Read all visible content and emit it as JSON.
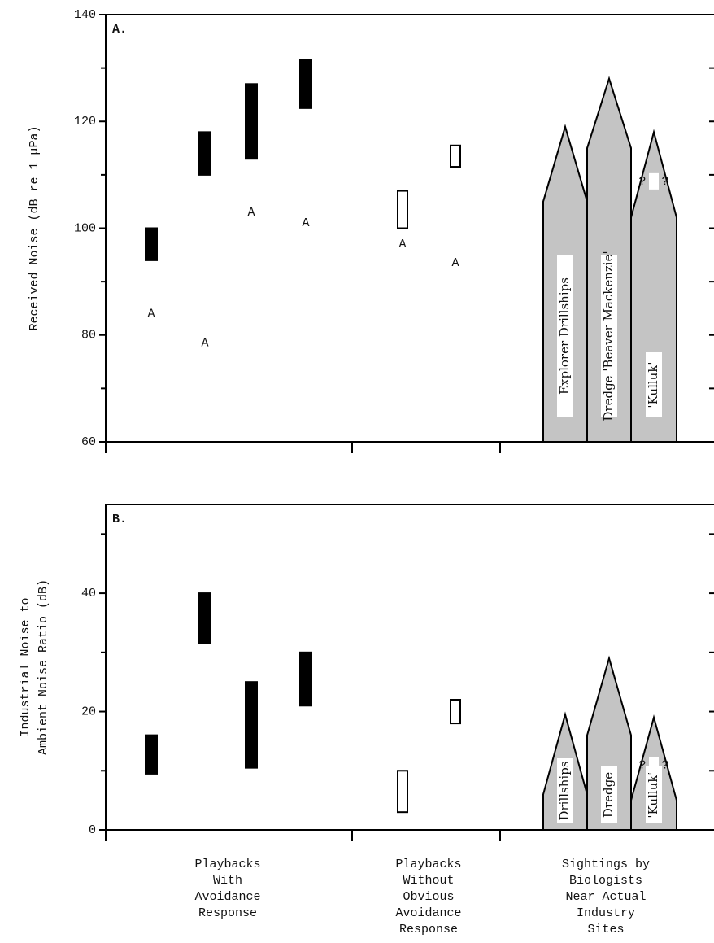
{
  "chart_data": [
    {
      "type": "range-bar",
      "panel_label": "A.",
      "y_label": "Received Noise (dB re 1 μPa)",
      "ylim": [
        60,
        140
      ],
      "yticks": [
        60,
        80,
        100,
        120,
        140
      ],
      "minor_yticks": [
        70,
        90,
        110,
        130
      ],
      "bars": [
        {
          "low": 94,
          "high": 100,
          "style": "solid"
        },
        {
          "low": 110,
          "high": 118,
          "style": "solid"
        },
        {
          "low": 113,
          "high": 127,
          "style": "solid"
        },
        {
          "low": 122.5,
          "high": 131.5,
          "style": "solid"
        },
        {
          "low": 100,
          "high": 107,
          "style": "open"
        },
        {
          "low": 111.5,
          "high": 115.5,
          "style": "open"
        }
      ],
      "ambient": {
        "marker": "A",
        "values": [
          84,
          78.5,
          103,
          101,
          97,
          93.5
        ]
      },
      "sites": [
        {
          "label": "Explorer Drillships",
          "shoulder": 105,
          "peak": 119
        },
        {
          "label": "Dredge 'Beaver Mackenzie'",
          "shoulder": 115,
          "peak": 128
        },
        {
          "label": "'Kulluk'",
          "shoulder": 102,
          "peak": 118,
          "uncertain": "?"
        }
      ]
    },
    {
      "type": "range-bar",
      "panel_label": "B.",
      "y_label": [
        "Industrial Noise to",
        "Ambient Noise Ratio (dB)"
      ],
      "ylim": [
        0,
        55
      ],
      "yticks": [
        0,
        20,
        40
      ],
      "minor_yticks": [
        10,
        30,
        50
      ],
      "bars": [
        {
          "low": 9.5,
          "high": 16,
          "style": "solid"
        },
        {
          "low": 31.5,
          "high": 40,
          "style": "solid"
        },
        {
          "low": 10.5,
          "high": 25,
          "style": "solid"
        },
        {
          "low": 21,
          "high": 30,
          "style": "solid"
        },
        {
          "low": 3,
          "high": 10,
          "style": "open"
        },
        {
          "low": 18,
          "high": 22,
          "style": "open"
        }
      ],
      "sites": [
        {
          "label": "Drillships",
          "shoulder": 6,
          "peak": 19.5
        },
        {
          "label": "Dredge",
          "shoulder": 16,
          "peak": 29
        },
        {
          "label": "'Kulluk'",
          "shoulder": 5,
          "peak": 19,
          "uncertain": "?"
        }
      ],
      "groups": [
        [
          "Playbacks",
          "With",
          "Avoidance",
          "Response"
        ],
        [
          "Playbacks",
          "Without",
          "Obvious",
          "Avoidance",
          "Response"
        ],
        [
          "Sightings by",
          "Biologists",
          "Near Actual",
          "Industry",
          "Sites"
        ]
      ]
    }
  ]
}
